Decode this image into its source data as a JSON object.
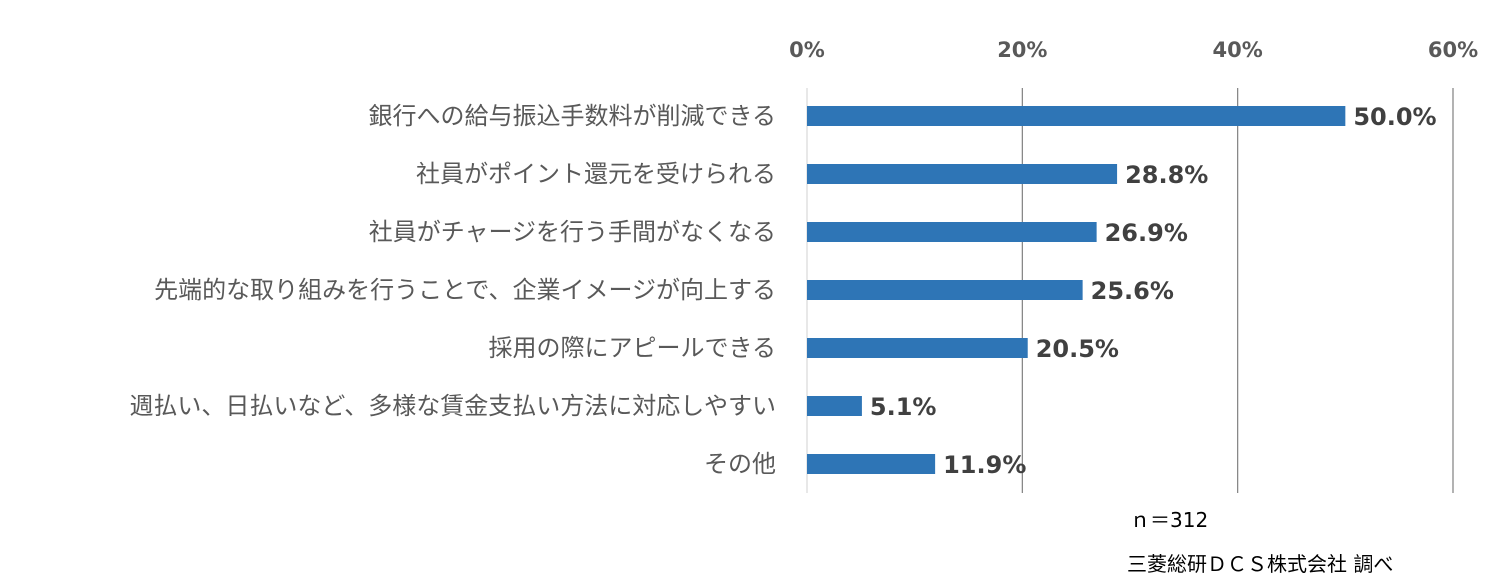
{
  "chart_data": {
    "type": "bar",
    "orientation": "horizontal",
    "categories": [
      "銀行への給与振込手数料が削減できる",
      "社員がポイント還元を受けられる",
      "社員がチャージを行う手間がなくなる",
      "先端的な取り組みを行うことで、企業イメージが向上する",
      "採用の際にアピールできる",
      "週払い、日払いなど、多様な賃金支払い方法に対応しやすい",
      "その他"
    ],
    "values": [
      50.0,
      28.8,
      26.9,
      25.6,
      20.5,
      5.1,
      11.9
    ],
    "data_labels": [
      "50.0%",
      "28.8%",
      "26.9%",
      "25.6%",
      "20.5%",
      "5.1%",
      "11.9%"
    ],
    "xlim": [
      0,
      60
    ],
    "ticks": [
      0,
      20,
      40,
      60
    ],
    "tick_labels": [
      "0%",
      "20%",
      "40%",
      "60%"
    ],
    "axis_position": "top",
    "grid": true,
    "bar_color": "#2E75B6",
    "grid_color": "#808080"
  },
  "notes": {
    "sample": "ｎ＝312",
    "source": "三菱総研ＤＣＳ株式会社 調べ"
  }
}
